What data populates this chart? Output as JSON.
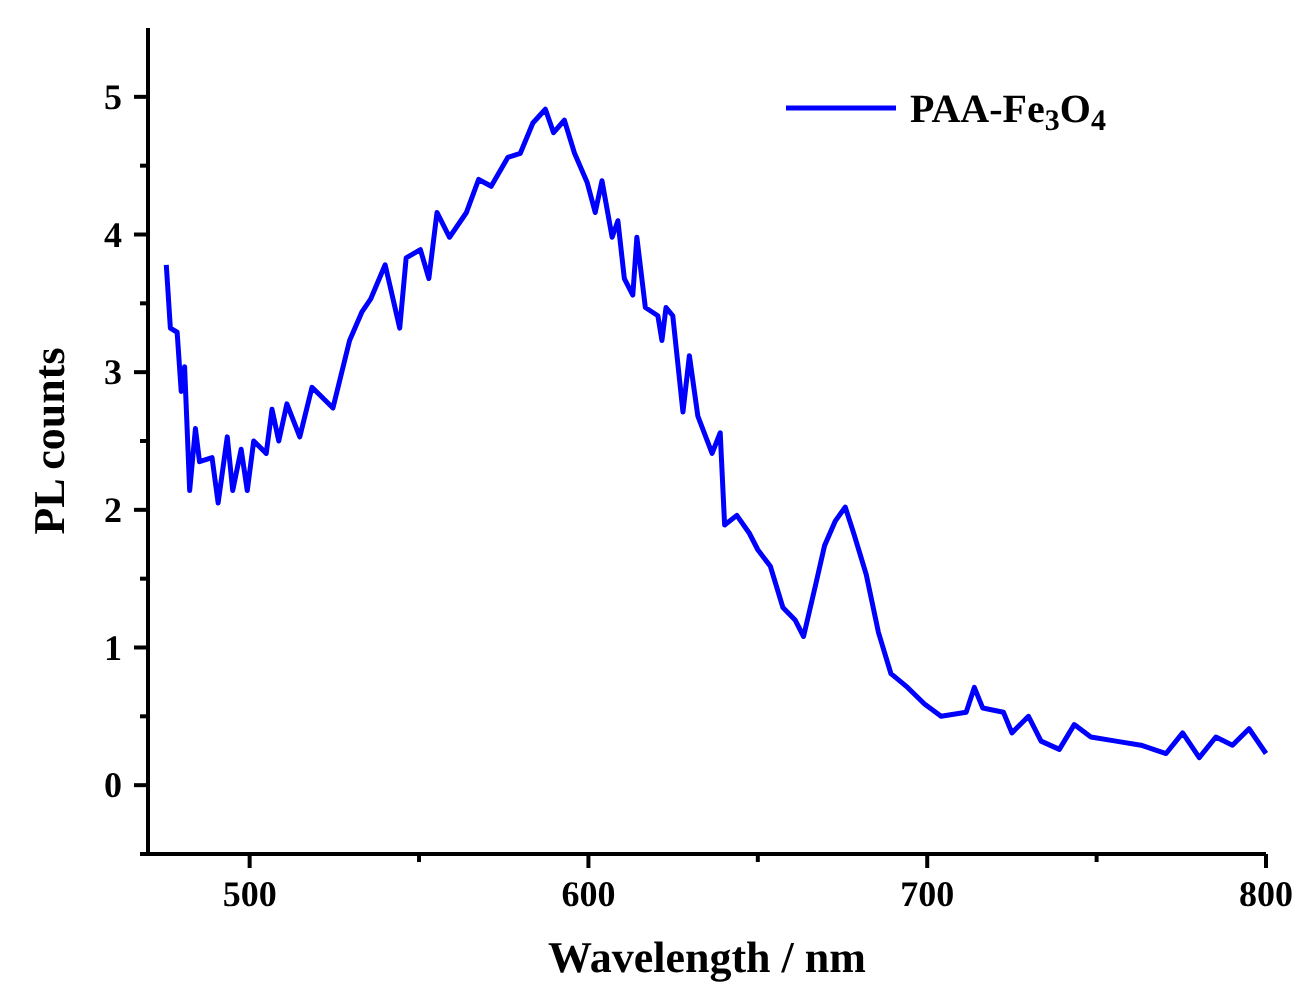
{
  "chart_data": {
    "type": "line",
    "xlabel": "Wavelength / nm",
    "ylabel": "PL counts",
    "xlim": [
      470,
      800
    ],
    "ylim": [
      -0.5,
      5.5
    ],
    "xticks": [
      500,
      {
        "value": 550,
        "label": null
      },
      600,
      {
        "value": 650,
        "label": null
      },
      700,
      {
        "value": 750,
        "label": null
      },
      800
    ],
    "yticks": [
      {
        "value": -0.5,
        "label": null
      },
      0,
      {
        "value": 0.5,
        "label": null
      },
      1,
      {
        "value": 1.5,
        "label": null
      },
      2,
      {
        "value": 2.5,
        "label": null
      },
      3,
      {
        "value": 3.5,
        "label": null
      },
      4,
      {
        "value": 4.5,
        "label": null
      },
      5
    ],
    "legend": "top right",
    "grid": false,
    "marker": "none",
    "line_style": "solid",
    "series": [
      {
        "name": "PAA-Fe$_{3}$O$_{4}$",
        "color": "#0000ff",
        "x": [
          475.4,
          476.6,
          478.6,
          479.8,
          480.8,
          482.3,
          484,
          485.2,
          488.9,
          490.7,
          493.4,
          495,
          497.5,
          499.3,
          501.2,
          504.9,
          506.6,
          508.6,
          511,
          514.8,
          518.4,
          524.6,
          529.5,
          533.2,
          535.7,
          540,
          544.3,
          546.2,
          550.4,
          552.9,
          555.3,
          559,
          564,
          567.6,
          571.3,
          576.2,
          579.9,
          583.6,
          587.3,
          589.7,
          592.9,
          595.9,
          599.6,
          602,
          604,
          607,
          608.7,
          610.6,
          613.1,
          614.3,
          616.8,
          620.5,
          621.7,
          622.9,
          624.9,
          627.9,
          629.8,
          632.3,
          636.5,
          638.9,
          640.2,
          643.8,
          647.5,
          650,
          653.7,
          657.4,
          661,
          663.5,
          667.2,
          669.7,
          672.9,
          675.8,
          678.3,
          682,
          685.6,
          689.3,
          694.2,
          699.2,
          704.1,
          711.5,
          713.9,
          716.4,
          722.5,
          725,
          729.9,
          733.6,
          739,
          743.4,
          748.3,
          755.7,
          763.1,
          770.5,
          775.4,
          780.3,
          785.2,
          790.1,
          795,
          800
        ],
        "values": [
          3.78,
          3.32,
          3.29,
          2.86,
          3.04,
          2.14,
          2.59,
          2.35,
          2.38,
          2.05,
          2.53,
          2.14,
          2.44,
          2.14,
          2.5,
          2.41,
          2.73,
          2.5,
          2.77,
          2.53,
          2.89,
          2.74,
          3.23,
          3.44,
          3.53,
          3.78,
          3.32,
          3.83,
          3.89,
          3.68,
          4.16,
          3.98,
          4.16,
          4.4,
          4.35,
          4.56,
          4.59,
          4.81,
          4.91,
          4.74,
          4.83,
          4.59,
          4.38,
          4.16,
          4.39,
          3.98,
          4.1,
          3.68,
          3.56,
          3.98,
          3.47,
          3.41,
          3.23,
          3.47,
          3.41,
          2.71,
          3.12,
          2.68,
          2.41,
          2.56,
          1.89,
          1.96,
          1.83,
          1.71,
          1.59,
          1.29,
          1.2,
          1.08,
          1.47,
          1.74,
          1.92,
          2.02,
          1.83,
          1.53,
          1.11,
          0.81,
          0.71,
          0.59,
          0.5,
          0.53,
          0.71,
          0.56,
          0.53,
          0.38,
          0.5,
          0.32,
          0.26,
          0.44,
          0.35,
          0.32,
          0.29,
          0.23,
          0.38,
          0.2,
          0.35,
          0.29,
          0.41,
          0.23
        ]
      }
    ]
  }
}
